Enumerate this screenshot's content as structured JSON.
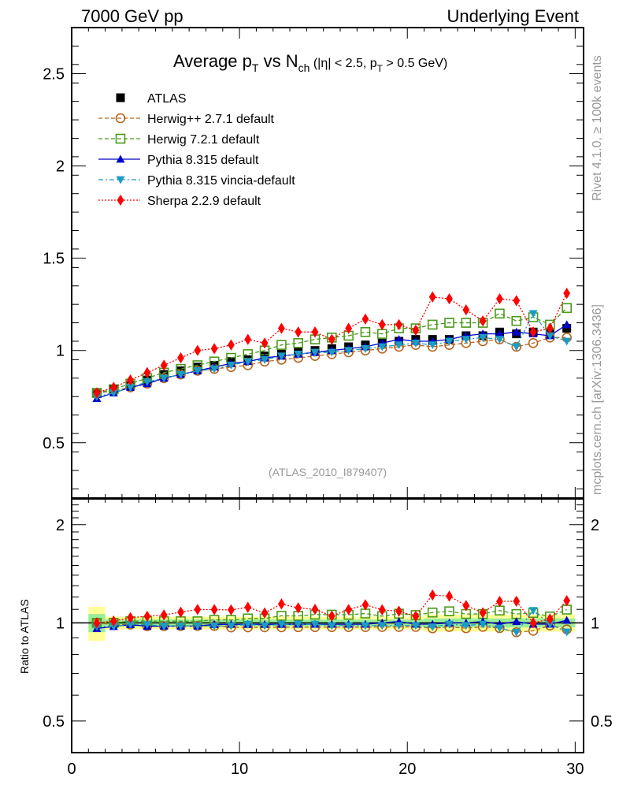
{
  "header": {
    "left": "7000 GeV pp",
    "right": "Underlying Event"
  },
  "side_labels": {
    "rivet": "Rivet 4.1.0, ≥ 100k events",
    "mcplots": "mcplots.cern.ch [arXiv:1306.3436]"
  },
  "chart_data": {
    "type": "line",
    "title": "Average pT vs Nch (|η| < 2.5, pT > 0.5 GeV)",
    "title_parts": {
      "a": "Average p",
      "a_sub": "T",
      "b": " vs N",
      "b_sub": "ch",
      "c": " (|η| < 2.5, p",
      "c_sub": "T",
      "d": " > 0.5 GeV)"
    },
    "analysis_id": "(ATLAS_2010_I879407)",
    "xlabel": "",
    "ylabel": "",
    "ratio_ylabel": "Ratio to ATLAS",
    "xlim": [
      0,
      30.5
    ],
    "ylim": [
      0.2,
      2.75
    ],
    "ratio_ylim": [
      0.4,
      2.4
    ],
    "ratio_scale": "log",
    "x_ticks": [
      0,
      10,
      20,
      30
    ],
    "y_ticks": [
      0.5,
      1,
      1.5,
      2,
      2.5
    ],
    "ratio_y_ticks": [
      0.5,
      1,
      2
    ],
    "legend_position": "top-left",
    "grid": false,
    "x": [
      1.5,
      2.5,
      3.5,
      4.5,
      5.5,
      6.5,
      7.5,
      8.5,
      9.5,
      10.5,
      11.5,
      12.5,
      13.5,
      14.5,
      15.5,
      16.5,
      17.5,
      18.5,
      19.5,
      20.5,
      21.5,
      22.5,
      23.5,
      24.5,
      25.5,
      26.5,
      27.5,
      28.5,
      29.5
    ],
    "series": [
      {
        "name": "ATLAS",
        "color": "#000000",
        "marker": "square-filled",
        "line": "none",
        "values": [
          0.77,
          0.79,
          0.81,
          0.84,
          0.87,
          0.89,
          0.91,
          0.92,
          0.94,
          0.95,
          0.97,
          0.98,
          0.99,
          1.0,
          1.01,
          1.02,
          1.03,
          1.04,
          1.05,
          1.06,
          1.06,
          1.06,
          1.08,
          1.08,
          1.1,
          1.09,
          1.1,
          1.09,
          1.12
        ]
      },
      {
        "name": "Herwig++ 2.7.1 default",
        "color": "#b5651d",
        "marker": "circle-open",
        "line": "dashed",
        "values": [
          0.77,
          0.78,
          0.8,
          0.82,
          0.85,
          0.87,
          0.89,
          0.9,
          0.91,
          0.92,
          0.94,
          0.95,
          0.96,
          0.97,
          0.98,
          0.99,
          1.0,
          1.01,
          1.02,
          1.03,
          1.02,
          1.03,
          1.04,
          1.05,
          1.06,
          1.02,
          1.04,
          1.07,
          1.07
        ]
      },
      {
        "name": "Herwig 7.2.1 default",
        "color": "#4a9a1a",
        "marker": "square-open",
        "line": "dashed",
        "values": [
          0.77,
          0.79,
          0.82,
          0.85,
          0.88,
          0.9,
          0.92,
          0.94,
          0.96,
          0.98,
          1.0,
          1.03,
          1.04,
          1.06,
          1.07,
          1.08,
          1.1,
          1.09,
          1.12,
          1.12,
          1.14,
          1.15,
          1.15,
          1.15,
          1.2,
          1.16,
          1.18,
          1.14,
          1.23
        ]
      },
      {
        "name": "Pythia 8.315 default",
        "color": "#0000cc",
        "marker": "triangle-up-filled",
        "line": "solid",
        "values": [
          0.74,
          0.77,
          0.8,
          0.82,
          0.85,
          0.87,
          0.89,
          0.91,
          0.93,
          0.94,
          0.96,
          0.97,
          0.98,
          0.99,
          1.0,
          1.01,
          1.02,
          1.04,
          1.06,
          1.05,
          1.05,
          1.06,
          1.08,
          1.09,
          1.09,
          1.1,
          1.09,
          1.08,
          1.14
        ]
      },
      {
        "name": "Pythia 8.315 vincia-default",
        "color": "#1a9cc4",
        "marker": "triangle-down-filled",
        "line": "dashdot",
        "values": [
          0.75,
          0.77,
          0.8,
          0.83,
          0.85,
          0.87,
          0.89,
          0.9,
          0.92,
          0.94,
          0.95,
          0.97,
          0.98,
          0.99,
          0.99,
          1.0,
          1.01,
          1.02,
          1.03,
          1.04,
          1.03,
          1.05,
          1.06,
          1.07,
          1.06,
          1.02,
          1.2,
          1.08,
          1.05
        ]
      },
      {
        "name": "Sherpa 2.2.9 default",
        "color": "#ff0000",
        "marker": "diamond-filled",
        "line": "dotted",
        "values": [
          0.77,
          0.8,
          0.84,
          0.88,
          0.92,
          0.96,
          1.0,
          1.01,
          1.03,
          1.06,
          1.04,
          1.12,
          1.1,
          1.1,
          1.06,
          1.12,
          1.17,
          1.14,
          1.14,
          1.11,
          1.29,
          1.28,
          1.22,
          1.16,
          1.28,
          1.27,
          1.1,
          1.12,
          1.31
        ]
      }
    ],
    "atlas_band_ratio": [
      0.08,
      0.03,
      0.03,
      0.03,
      0.03,
      0.03,
      0.03,
      0.03,
      0.03,
      0.03,
      0.03,
      0.03,
      0.03,
      0.03,
      0.03,
      0.03,
      0.03,
      0.03,
      0.03,
      0.03,
      0.04,
      0.04,
      0.04,
      0.04,
      0.04,
      0.04,
      0.04,
      0.04,
      0.04
    ]
  }
}
